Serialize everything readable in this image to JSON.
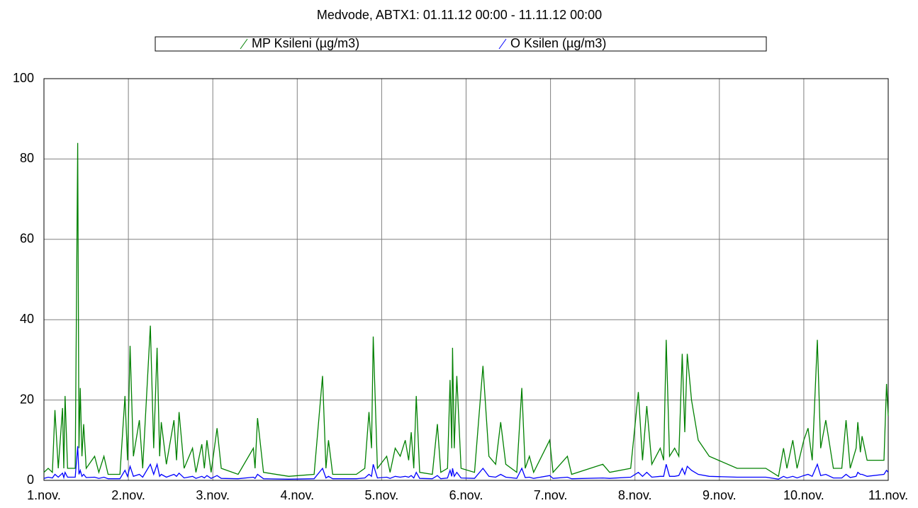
{
  "chart_data": {
    "type": "line",
    "title": "Medvode, ABTX1: 01.11.12 00:00 - 11.11.12 00:00",
    "x": [
      0,
      0.05,
      0.1,
      0.13,
      0.17,
      0.22,
      0.235,
      0.25,
      0.28,
      0.37,
      0.4,
      0.415,
      0.43,
      0.45,
      0.47,
      0.5,
      0.6,
      0.65,
      0.71,
      0.76,
      0.9,
      0.96,
      0.99,
      1.02,
      1.06,
      1.13,
      1.17,
      1.26,
      1.3,
      1.34,
      1.37,
      1.39,
      1.45,
      1.54,
      1.57,
      1.6,
      1.66,
      1.76,
      1.8,
      1.87,
      1.9,
      1.93,
      1.98,
      2.05,
      2.1,
      2.3,
      2.48,
      2.5,
      2.53,
      2.6,
      2.9,
      3.2,
      3.3,
      3.34,
      3.37,
      3.42,
      3.7,
      3.8,
      3.85,
      3.88,
      3.9,
      3.95,
      4.06,
      4.1,
      4.16,
      4.22,
      4.28,
      4.32,
      4.35,
      4.38,
      4.41,
      4.45,
      4.6,
      4.66,
      4.7,
      4.78,
      4.81,
      4.83,
      4.84,
      4.86,
      4.89,
      4.94,
      5.1,
      5.2,
      5.27,
      5.35,
      5.41,
      5.47,
      5.6,
      5.66,
      5.7,
      5.75,
      5.8,
      5.99,
      6.03,
      6.2,
      6.25,
      6.62,
      6.7,
      6.95,
      7.04,
      7.09,
      7.14,
      7.2,
      7.3,
      7.34,
      7.37,
      7.41,
      7.47,
      7.52,
      7.56,
      7.59,
      7.62,
      7.67,
      7.75,
      7.88,
      8.21,
      8.55,
      8.7,
      8.76,
      8.8,
      8.87,
      8.92,
      9.0,
      9.05,
      9.1,
      9.16,
      9.2,
      9.26,
      9.35,
      9.45,
      9.5,
      9.55,
      9.62,
      9.64,
      9.67,
      9.69,
      9.75,
      9.95,
      9.98,
      10
    ],
    "series": [
      {
        "name": "MP Ksileni (µg/m3)",
        "color": "#008000",
        "values": [
          2,
          3,
          2,
          17.5,
          3,
          18,
          3,
          21,
          3,
          3,
          84,
          8,
          23,
          6,
          14,
          3,
          6,
          2,
          6,
          1.5,
          1.5,
          21,
          5,
          33.5,
          6,
          15,
          3,
          38.5,
          8,
          33,
          6,
          14.5,
          4,
          15,
          5,
          17,
          3,
          8,
          2,
          9,
          3,
          10,
          2,
          13,
          3,
          1.5,
          8,
          3,
          15.5,
          2,
          1,
          1.5,
          26,
          3,
          10,
          1.5,
          1.5,
          3,
          17,
          8,
          35.8,
          3,
          6,
          2,
          8,
          6,
          10,
          5,
          12,
          3,
          21,
          2,
          1.5,
          14,
          2,
          3,
          25,
          8,
          33,
          8,
          26,
          3,
          2,
          28.5,
          6,
          4,
          14.5,
          4,
          2,
          23,
          3,
          6,
          2,
          10,
          2,
          6,
          1.5,
          4,
          2,
          3,
          22,
          5,
          18.5,
          4,
          8,
          5,
          35,
          6,
          8,
          6,
          31.5,
          12,
          31.5,
          20,
          10,
          6,
          3,
          3,
          1,
          8,
          3,
          10,
          3,
          10,
          13,
          5,
          35,
          8,
          15,
          3,
          3,
          15,
          3,
          8,
          14.5,
          7,
          11,
          5,
          5,
          24,
          16
        ]
      },
      {
        "name": "O Ksilen (µg/m3)",
        "color": "#0000ff",
        "values": [
          0.5,
          0.8,
          0.6,
          1.5,
          0.8,
          1.8,
          0.7,
          2,
          0.8,
          0.8,
          8.5,
          1.5,
          2.5,
          1,
          1.5,
          0.7,
          0.8,
          0.5,
          0.8,
          0.4,
          0.4,
          2.5,
          1,
          3.5,
          1,
          1.5,
          0.8,
          4,
          1.5,
          4,
          1,
          1.5,
          0.8,
          1.5,
          1,
          1.8,
          0.6,
          1,
          0.5,
          1,
          0.6,
          1.2,
          0.5,
          1.2,
          0.5,
          0.4,
          0.8,
          0.5,
          1.5,
          0.4,
          0.3,
          0.4,
          3,
          0.6,
          1,
          0.4,
          0.4,
          0.6,
          1.5,
          1,
          4,
          0.6,
          0.8,
          0.5,
          1,
          0.8,
          1,
          0.8,
          1.2,
          0.6,
          2,
          0.5,
          0.4,
          1.2,
          0.4,
          0.6,
          2.5,
          1,
          3,
          1,
          2,
          0.6,
          0.5,
          3,
          1,
          0.8,
          1.5,
          0.8,
          0.5,
          3,
          0.7,
          0.8,
          0.5,
          1.2,
          0.5,
          0.8,
          0.4,
          0.6,
          0.5,
          0.8,
          2,
          1,
          2,
          0.8,
          1,
          1,
          4,
          1,
          1,
          1.2,
          3,
          1.5,
          3.5,
          2.5,
          1.5,
          1,
          0.8,
          0.8,
          0.3,
          1,
          0.6,
          1,
          0.6,
          1.2,
          1.5,
          1,
          4,
          1.2,
          1.5,
          0.6,
          0.6,
          1.5,
          0.7,
          1,
          2,
          1.5,
          1.5,
          1,
          1.5,
          2.5,
          2
        ]
      }
    ],
    "xlim": [
      0,
      10
    ],
    "xticks": [
      {
        "value": 0,
        "label": "1.nov."
      },
      {
        "value": 1,
        "label": "2.nov."
      },
      {
        "value": 2,
        "label": "3.nov."
      },
      {
        "value": 3,
        "label": "4.nov."
      },
      {
        "value": 4,
        "label": "5.nov."
      },
      {
        "value": 5,
        "label": "6.nov."
      },
      {
        "value": 6,
        "label": "7.nov."
      },
      {
        "value": 7,
        "label": "8.nov."
      },
      {
        "value": 8,
        "label": "9.nov."
      },
      {
        "value": 9,
        "label": "10.nov."
      },
      {
        "value": 10,
        "label": "11.nov."
      }
    ],
    "ylim": [
      0,
      100
    ],
    "yticks": [
      0,
      20,
      40,
      60,
      80,
      100
    ],
    "grid": true
  }
}
